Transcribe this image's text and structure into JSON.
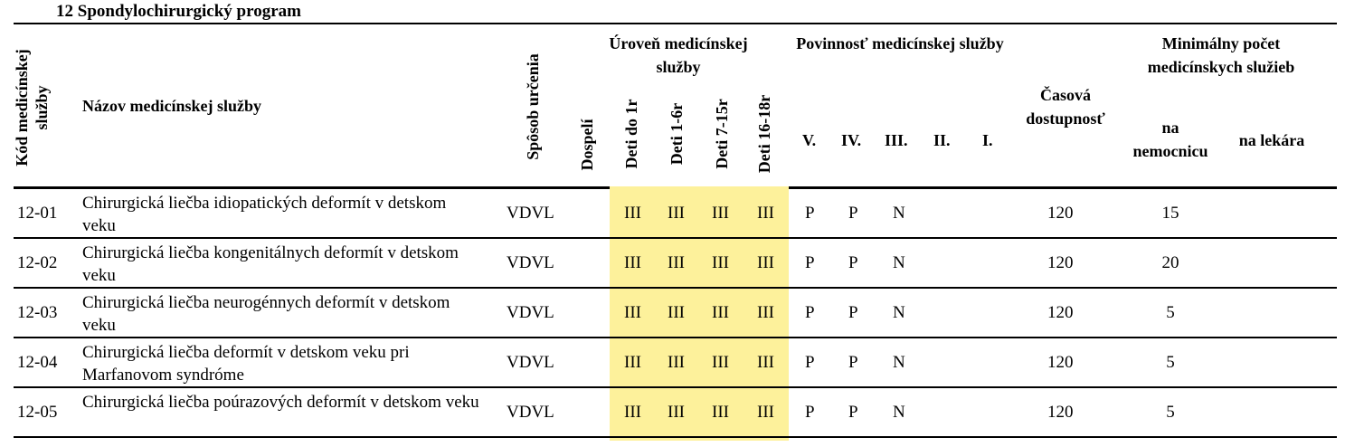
{
  "section_title": "12  Spondylochirurgický program",
  "header": {
    "kod": "Kód medicínskej služby",
    "nazov": "Názov medicínskej služby",
    "sposob": "Spôsob určenia",
    "uroven": "Úroveň medicínskej služby",
    "dospeli": "Dospelí",
    "deti_do_1r": "Deti do 1r",
    "deti_1_6r": "Deti 1-6r",
    "deti_7_15r": "Deti 7-15r",
    "deti_16_18r": "Deti 16-18r",
    "povinnost": "Povinnosť medicínskej služby",
    "pov_levels": [
      "V.",
      "IV.",
      "III.",
      "II.",
      "I."
    ],
    "casova": "Časová dostupnosť",
    "minimalny": "Minimálny počet medicínskych služieb",
    "na_nemocnicu": "na nemocnicu",
    "na_lekara": "na lekára"
  },
  "highlight_color": "#fdf19b",
  "rows": [
    {
      "kod": "12-01",
      "nazov": "Chirurgická liečba  idiopatických deformít v detskom veku",
      "sposob": "VDVL",
      "dospeli": "",
      "deti": [
        "III",
        "III",
        "III",
        "III"
      ],
      "pov": [
        "P",
        "P",
        "N",
        "",
        ""
      ],
      "casova": "120",
      "nemocnica": "15",
      "lekar": ""
    },
    {
      "kod": "12-02",
      "nazov": "Chirurgická liečba kongenitálnych deformít v detskom veku",
      "sposob": "VDVL",
      "dospeli": "",
      "deti": [
        "III",
        "III",
        "III",
        "III"
      ],
      "pov": [
        "P",
        "P",
        "N",
        "",
        ""
      ],
      "casova": "120",
      "nemocnica": "20",
      "lekar": ""
    },
    {
      "kod": "12-03",
      "nazov": "Chirurgická liečba neurogénnych deformít v detskom veku",
      "sposob": "VDVL",
      "dospeli": "",
      "deti": [
        "III",
        "III",
        "III",
        "III"
      ],
      "pov": [
        "P",
        "P",
        "N",
        "",
        ""
      ],
      "casova": "120",
      "nemocnica": "5",
      "lekar": ""
    },
    {
      "kod": "12-04",
      "nazov": "Chirurgická liečba deformít v detskom veku pri Marfanovom syndróme",
      "sposob": "VDVL",
      "dospeli": "",
      "deti": [
        "III",
        "III",
        "III",
        "III"
      ],
      "pov": [
        "P",
        "P",
        "N",
        "",
        ""
      ],
      "casova": "120",
      "nemocnica": "5",
      "lekar": ""
    },
    {
      "kod": "12-05",
      "nazov": "Chirurgická liečba poúrazových deformít v detskom veku",
      "sposob": "VDVL",
      "dospeli": "",
      "deti": [
        "III",
        "III",
        "III",
        "III"
      ],
      "pov": [
        "P",
        "P",
        "N",
        "",
        ""
      ],
      "casova": "120",
      "nemocnica": "5",
      "lekar": ""
    }
  ]
}
